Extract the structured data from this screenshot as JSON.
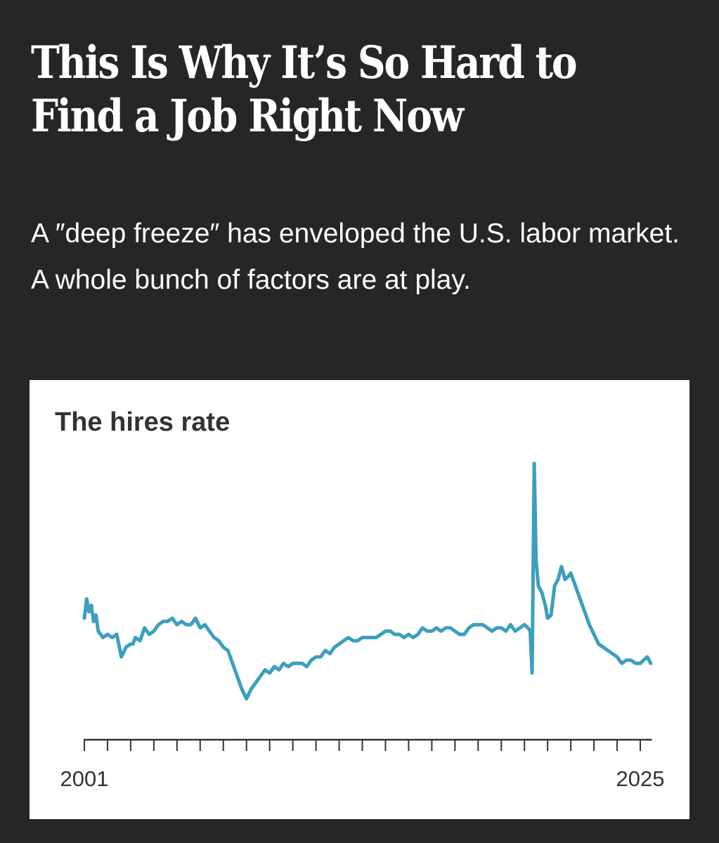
{
  "article": {
    "headline": "This Is Why It’s So Hard to Find a Job Right Now",
    "dek": "A ″deep freeze″ has enveloped the U.S. labor market. A whole bunch of factors are at play."
  },
  "colors": {
    "background": "#262626",
    "card": "#ffffff",
    "line": "#3d9fbe",
    "axis": "#333333"
  },
  "chart_data": {
    "type": "line",
    "title": "The hires rate",
    "xlabel": "",
    "ylabel": "",
    "grid": false,
    "legend": "none",
    "x_range": [
      2001,
      2025.5
    ],
    "y_range": [
      2.8,
      7.2
    ],
    "x_tick_years": [
      2001,
      2002,
      2003,
      2004,
      2005,
      2006,
      2007,
      2008,
      2009,
      2010,
      2011,
      2012,
      2013,
      2014,
      2015,
      2016,
      2017,
      2018,
      2019,
      2020,
      2021,
      2022,
      2023,
      2024,
      2025
    ],
    "x_tick_labels": [
      {
        "year": 2001,
        "label": "2001"
      },
      {
        "year": 2025,
        "label": "2025"
      }
    ],
    "series": [
      {
        "name": "",
        "x": [
          2001.0,
          2001.1,
          2001.2,
          2001.3,
          2001.4,
          2001.5,
          2001.6,
          2001.8,
          2002.0,
          2002.2,
          2002.4,
          2002.6,
          2002.8,
          2003.0,
          2003.1,
          2003.2,
          2003.4,
          2003.6,
          2003.8,
          2004.0,
          2004.2,
          2004.4,
          2004.6,
          2004.8,
          2005.0,
          2005.2,
          2005.4,
          2005.6,
          2005.8,
          2006.0,
          2006.2,
          2006.4,
          2006.6,
          2006.8,
          2007.0,
          2007.2,
          2007.4,
          2007.6,
          2007.8,
          2008.0,
          2008.2,
          2008.4,
          2008.6,
          2008.8,
          2009.0,
          2009.2,
          2009.4,
          2009.6,
          2009.8,
          2010.0,
          2010.2,
          2010.4,
          2010.6,
          2010.8,
          2011.0,
          2011.2,
          2011.4,
          2011.6,
          2011.8,
          2012.0,
          2012.2,
          2012.4,
          2012.6,
          2012.8,
          2013.0,
          2013.2,
          2013.4,
          2013.6,
          2013.8,
          2014.0,
          2014.2,
          2014.4,
          2014.6,
          2014.8,
          2015.0,
          2015.2,
          2015.4,
          2015.6,
          2015.8,
          2016.0,
          2016.2,
          2016.4,
          2016.6,
          2016.8,
          2017.0,
          2017.2,
          2017.4,
          2017.6,
          2017.8,
          2018.0,
          2018.2,
          2018.4,
          2018.6,
          2018.8,
          2019.0,
          2019.2,
          2019.4,
          2019.6,
          2019.8,
          2020.0,
          2020.15,
          2020.25,
          2020.33,
          2020.42,
          2020.5,
          2020.6,
          2020.75,
          2020.9,
          2021.0,
          2021.15,
          2021.3,
          2021.45,
          2021.6,
          2021.75,
          2021.9,
          2022.0,
          2022.2,
          2022.4,
          2022.6,
          2022.8,
          2023.0,
          2023.2,
          2023.4,
          2023.6,
          2023.8,
          2024.0,
          2024.2,
          2024.4,
          2024.6,
          2024.8,
          2025.0,
          2025.15,
          2025.3,
          2025.45
        ],
        "y": [
          3.9,
          4.2,
          4.0,
          4.1,
          3.85,
          3.95,
          3.7,
          3.6,
          3.65,
          3.6,
          3.65,
          3.3,
          3.45,
          3.5,
          3.5,
          3.6,
          3.55,
          3.75,
          3.65,
          3.7,
          3.8,
          3.85,
          3.85,
          3.9,
          3.8,
          3.85,
          3.8,
          3.8,
          3.9,
          3.75,
          3.8,
          3.7,
          3.6,
          3.55,
          3.45,
          3.4,
          3.2,
          3.0,
          2.8,
          2.65,
          2.8,
          2.9,
          3.0,
          3.1,
          3.05,
          3.15,
          3.1,
          3.2,
          3.15,
          3.2,
          3.2,
          3.2,
          3.15,
          3.25,
          3.3,
          3.3,
          3.4,
          3.35,
          3.45,
          3.5,
          3.55,
          3.6,
          3.55,
          3.55,
          3.6,
          3.6,
          3.6,
          3.6,
          3.65,
          3.7,
          3.7,
          3.65,
          3.65,
          3.6,
          3.65,
          3.6,
          3.65,
          3.75,
          3.7,
          3.7,
          3.75,
          3.7,
          3.75,
          3.75,
          3.7,
          3.65,
          3.65,
          3.75,
          3.8,
          3.8,
          3.8,
          3.75,
          3.7,
          3.75,
          3.75,
          3.7,
          3.8,
          3.7,
          3.75,
          3.8,
          3.75,
          3.7,
          3.05,
          6.3,
          4.8,
          4.4,
          4.3,
          4.1,
          3.9,
          3.95,
          4.4,
          4.5,
          4.7,
          4.5,
          4.55,
          4.6,
          4.4,
          4.2,
          4.0,
          3.8,
          3.65,
          3.5,
          3.45,
          3.4,
          3.35,
          3.3,
          3.2,
          3.25,
          3.25,
          3.2,
          3.2,
          3.25,
          3.3,
          3.2
        ]
      }
    ]
  }
}
